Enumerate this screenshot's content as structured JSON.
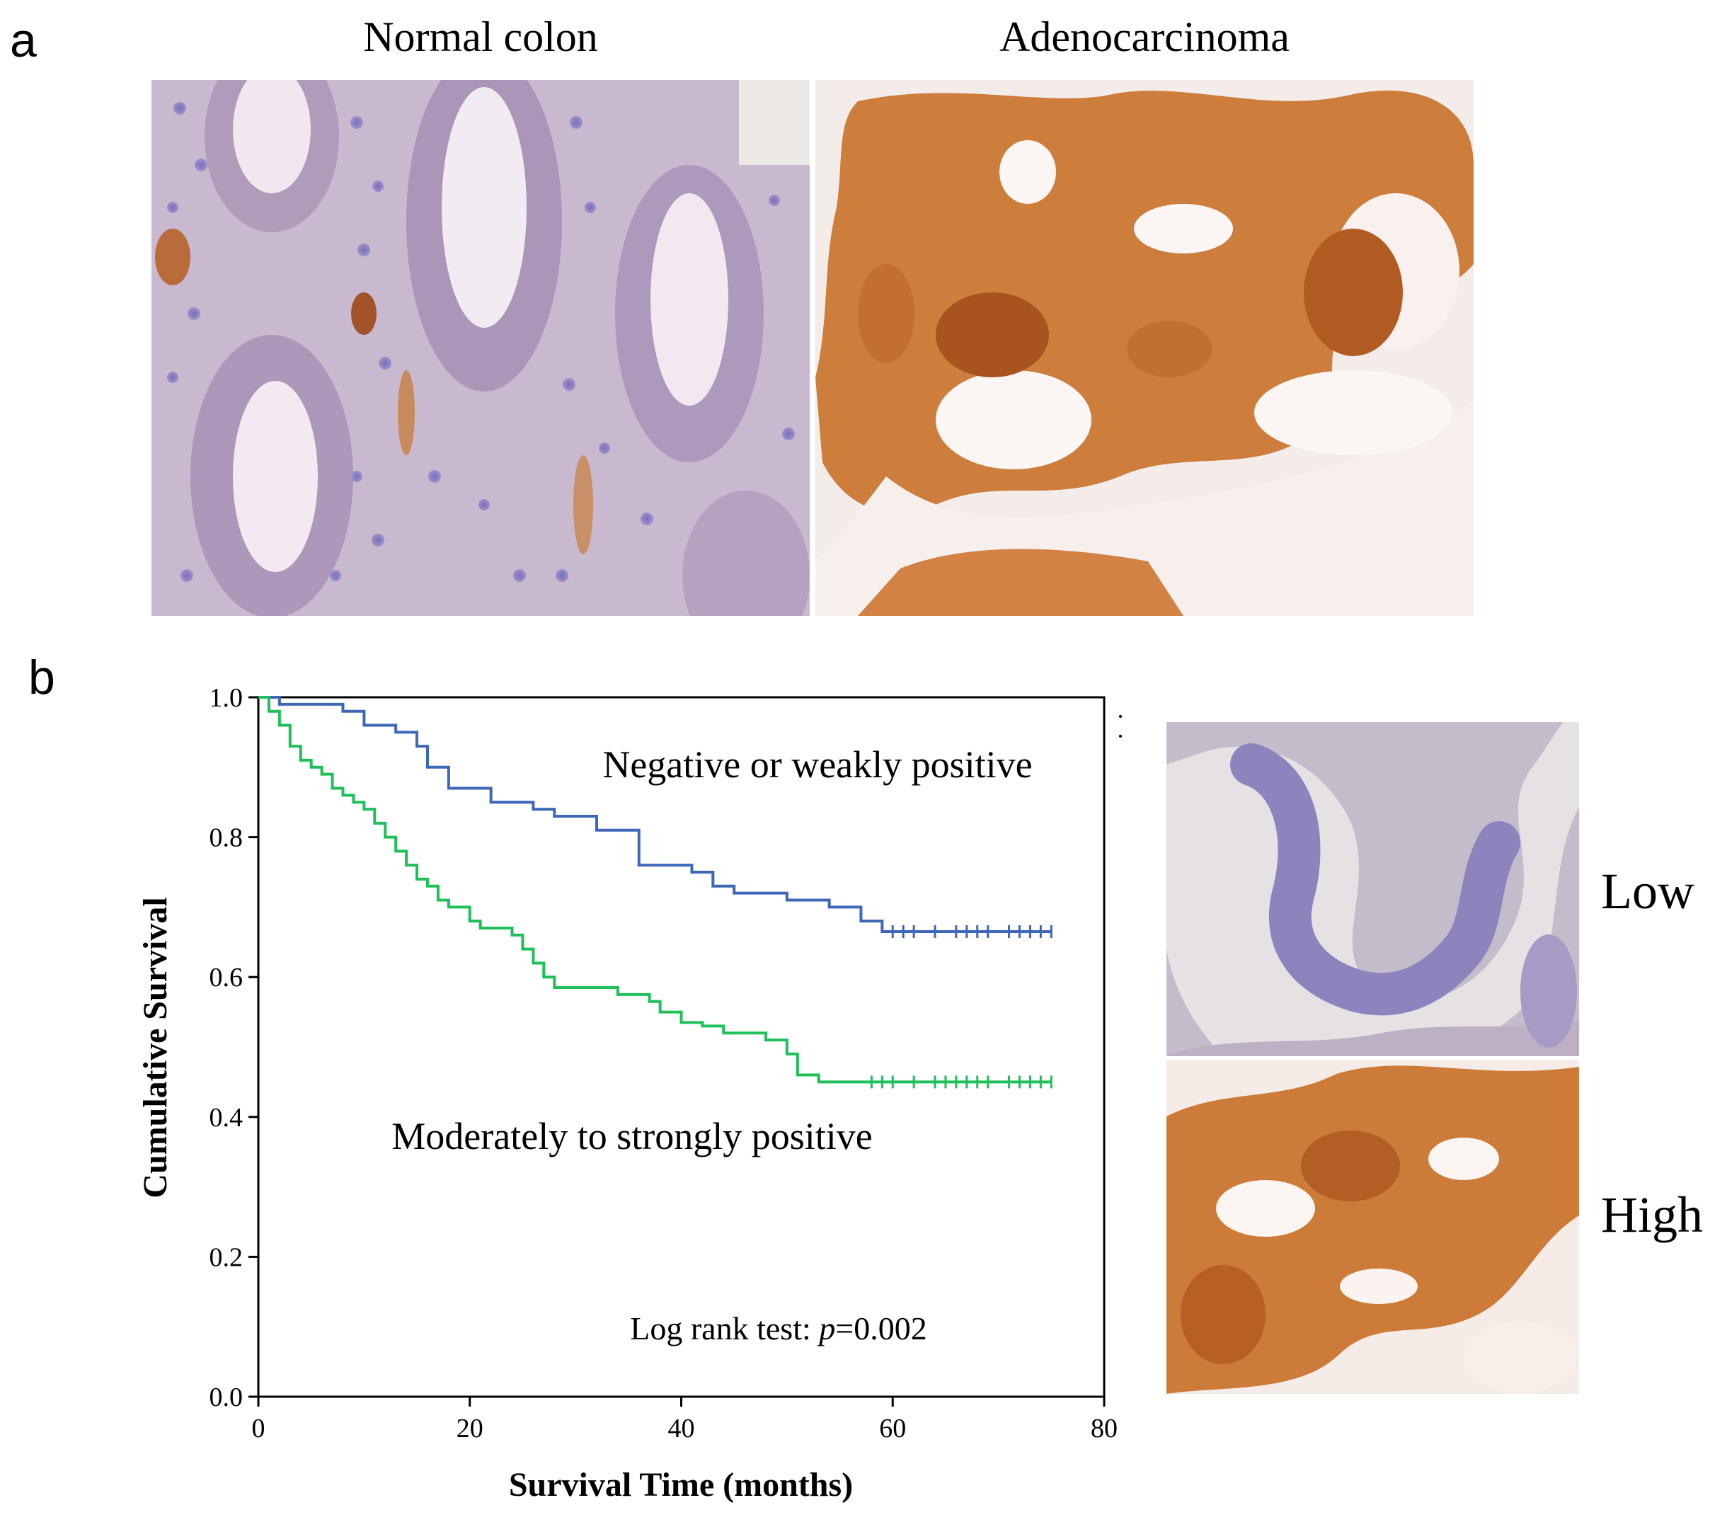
{
  "panels": {
    "a": {
      "letter": "a",
      "left_title": "Normal colon",
      "right_title": "Adenocarcinoma"
    },
    "b": {
      "letter": "b",
      "low_label": "Low",
      "high_label": "High"
    }
  },
  "stain_colors": {
    "hematoxylin": "#8f83c2",
    "dab_brown": "#c8732e",
    "background": "#f1ece8"
  },
  "chart_data": {
    "type": "line",
    "xlabel": "Survival Time (months)",
    "ylabel": "Cumulative Survival",
    "xlim": [
      0,
      80
    ],
    "ylim": [
      0,
      1.0
    ],
    "xticks": [
      0,
      20,
      40,
      60,
      80
    ],
    "yticks": [
      0.0,
      0.2,
      0.4,
      0.6,
      0.8,
      1.0
    ],
    "annotation_prefix": "Log rank test: ",
    "annotation_p": "p",
    "annotation_value": "=0.002",
    "series": [
      {
        "name": "Negative or weakly positive",
        "color": "#3f67b8",
        "steps": [
          [
            0,
            1.0
          ],
          [
            2,
            0.99
          ],
          [
            8,
            0.98
          ],
          [
            10,
            0.96
          ],
          [
            13,
            0.95
          ],
          [
            15,
            0.93
          ],
          [
            16,
            0.9
          ],
          [
            18,
            0.87
          ],
          [
            22,
            0.85
          ],
          [
            26,
            0.84
          ],
          [
            28,
            0.83
          ],
          [
            32,
            0.81
          ],
          [
            36,
            0.76
          ],
          [
            41,
            0.75
          ],
          [
            43,
            0.73
          ],
          [
            45,
            0.72
          ],
          [
            50,
            0.71
          ],
          [
            54,
            0.7
          ],
          [
            57,
            0.68
          ],
          [
            59,
            0.665
          ]
        ],
        "end_x": 75,
        "censors": [
          60,
          61,
          62,
          64,
          66,
          67,
          68,
          69,
          71,
          72,
          73,
          74,
          75
        ]
      },
      {
        "name": "Moderately to strongly positive",
        "color": "#1fbf5a",
        "steps": [
          [
            0,
            1.0
          ],
          [
            1,
            0.98
          ],
          [
            2,
            0.96
          ],
          [
            3,
            0.93
          ],
          [
            4,
            0.91
          ],
          [
            5,
            0.9
          ],
          [
            6,
            0.89
          ],
          [
            7,
            0.87
          ],
          [
            8,
            0.86
          ],
          [
            9,
            0.85
          ],
          [
            10,
            0.84
          ],
          [
            11,
            0.82
          ],
          [
            12,
            0.8
          ],
          [
            13,
            0.78
          ],
          [
            14,
            0.76
          ],
          [
            15,
            0.74
          ],
          [
            16,
            0.73
          ],
          [
            17,
            0.71
          ],
          [
            18,
            0.7
          ],
          [
            20,
            0.68
          ],
          [
            21,
            0.67
          ],
          [
            24,
            0.66
          ],
          [
            25,
            0.64
          ],
          [
            26,
            0.62
          ],
          [
            27,
            0.6
          ],
          [
            28,
            0.585
          ],
          [
            34,
            0.575
          ],
          [
            37,
            0.565
          ],
          [
            38,
            0.55
          ],
          [
            40,
            0.535
          ],
          [
            42,
            0.53
          ],
          [
            44,
            0.52
          ],
          [
            48,
            0.51
          ],
          [
            50,
            0.49
          ],
          [
            51,
            0.46
          ],
          [
            53,
            0.45
          ]
        ],
        "end_x": 75,
        "censors": [
          58,
          59,
          60,
          62,
          64,
          65,
          66,
          67,
          68,
          69,
          71,
          72,
          73,
          74,
          75
        ]
      }
    ]
  }
}
